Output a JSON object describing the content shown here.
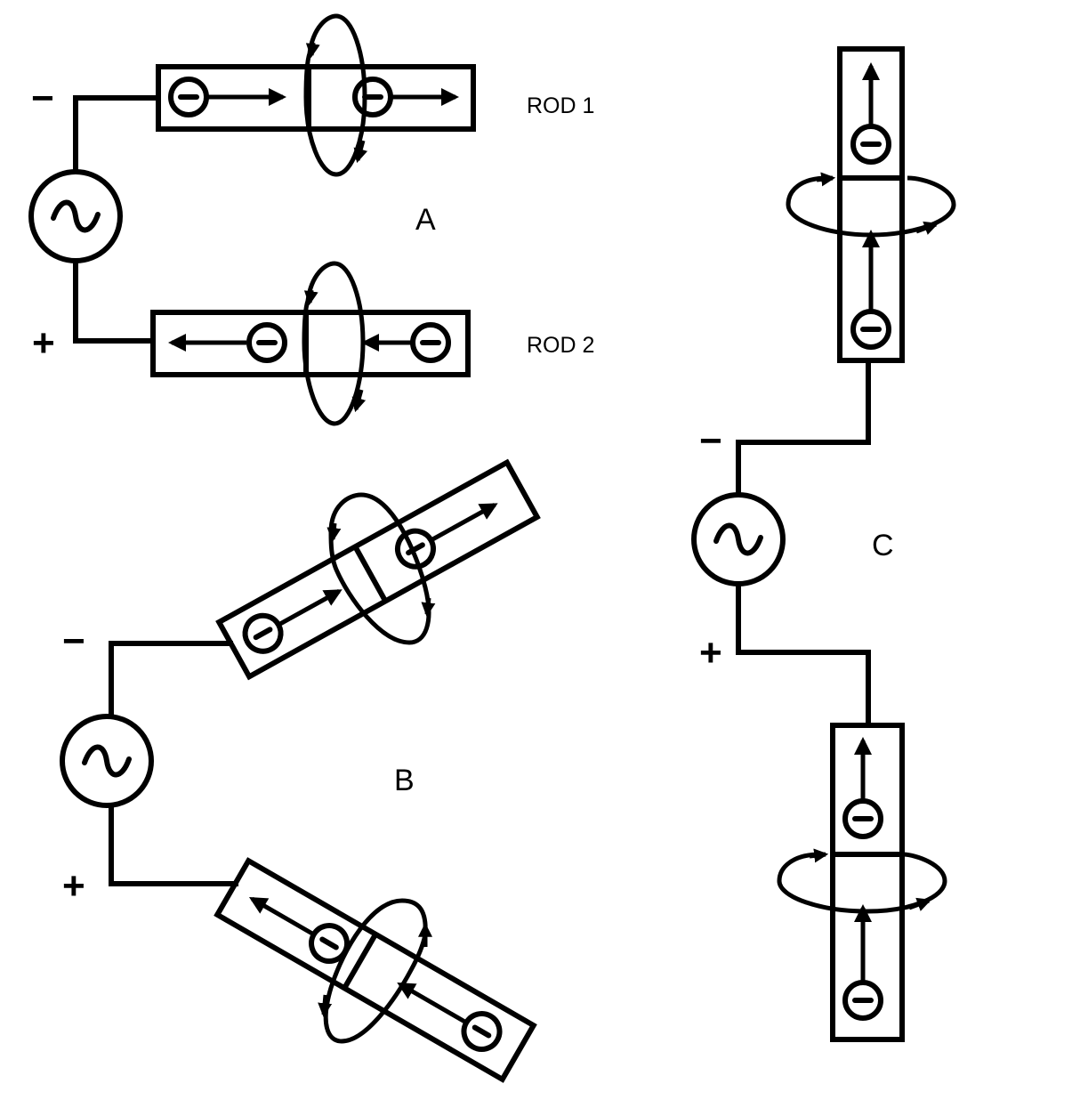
{
  "labels": {
    "rod1": "ROD 1",
    "rod2": "ROD 2",
    "panel_a": "A",
    "panel_b": "B",
    "panel_c": "C",
    "minus": "−",
    "plus": "+"
  },
  "colors": {
    "ink": "#000000",
    "background": "#ffffff"
  },
  "symbols": {
    "source": "ac-source-icon",
    "electron": "electron-icon",
    "field_loop": "magnetic-field-loop-icon"
  }
}
